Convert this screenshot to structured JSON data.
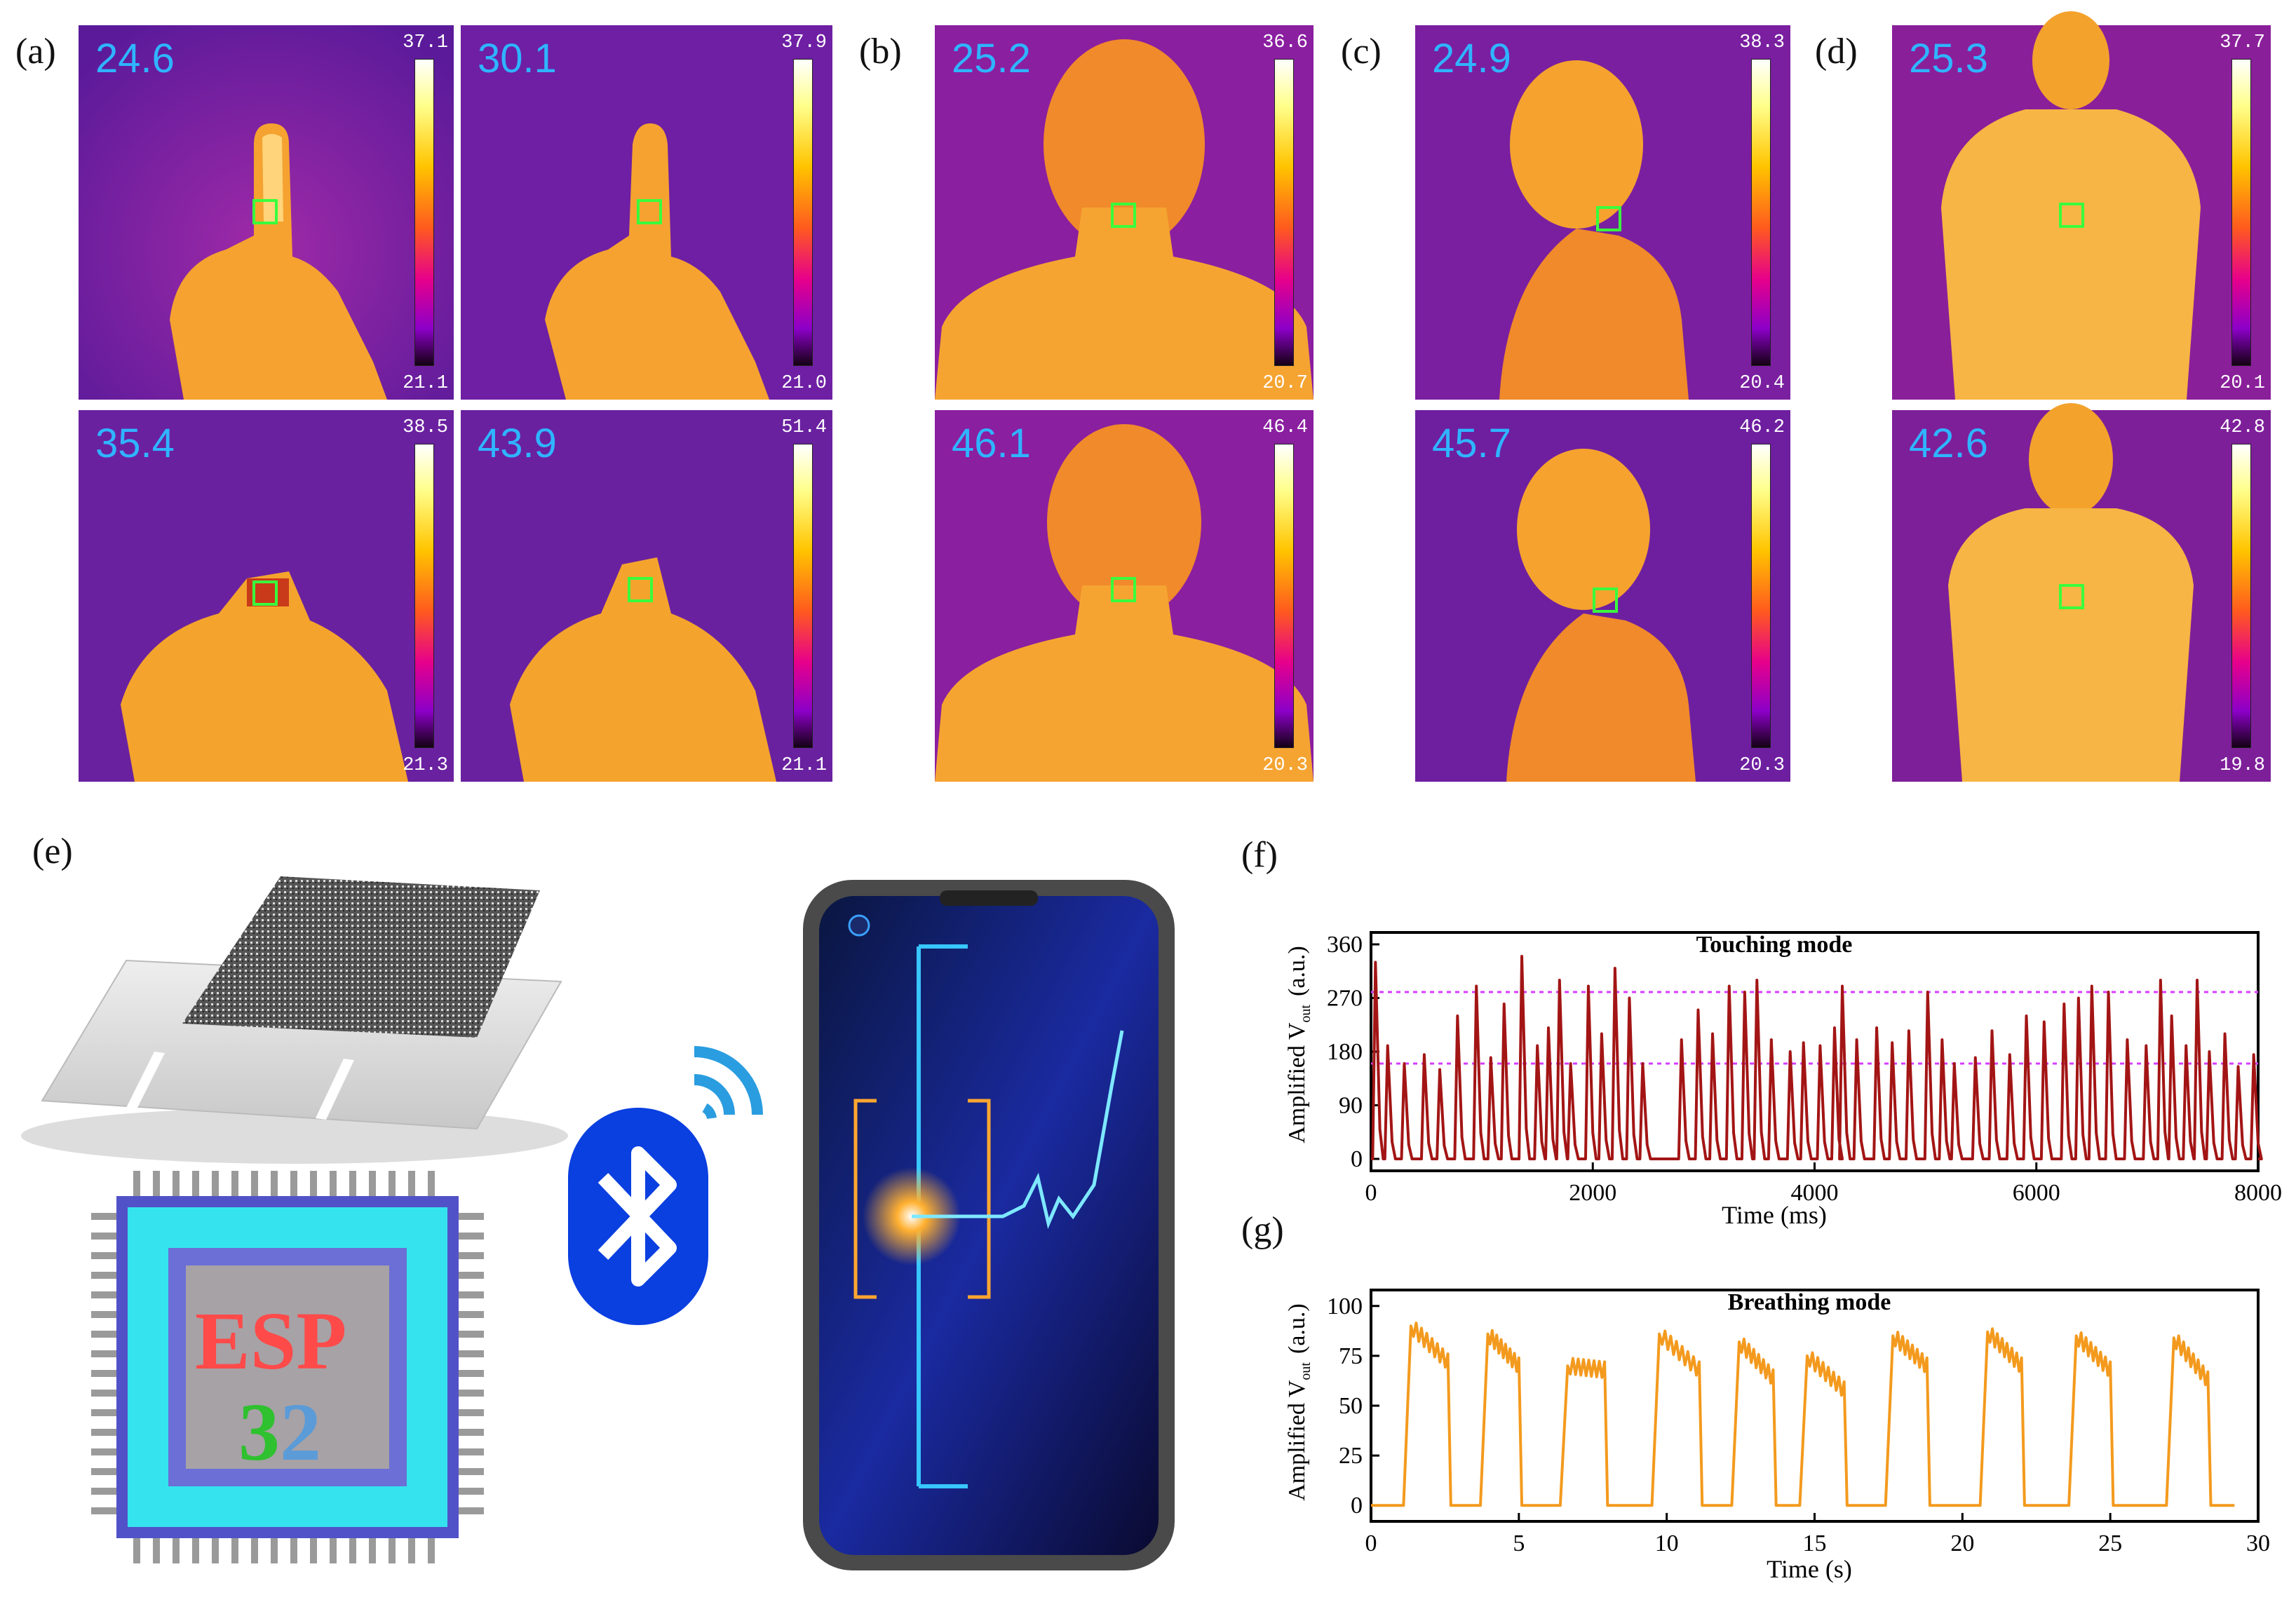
{
  "panel_labels": {
    "a": "(a)",
    "b": "(b)",
    "c": "(c)",
    "d": "(d)",
    "e": "(e)",
    "f": "(f)",
    "g": "(g)"
  },
  "thermal": {
    "a1": {
      "temp": "24.6",
      "max": "37.1",
      "min": "21.1"
    },
    "a2": {
      "temp": "30.1",
      "max": "37.9",
      "min": "21.0"
    },
    "a3": {
      "temp": "35.4",
      "max": "38.5",
      "min": "21.3"
    },
    "a4": {
      "temp": "43.9",
      "max": "51.4",
      "min": "21.1"
    },
    "b1": {
      "temp": "25.2",
      "max": "36.6",
      "min": "20.7"
    },
    "b2": {
      "temp": "46.1",
      "max": "46.4",
      "min": "20.3"
    },
    "c1": {
      "temp": "24.9",
      "max": "38.3",
      "min": "20.4"
    },
    "c2": {
      "temp": "45.7",
      "max": "46.2",
      "min": "20.3"
    },
    "d1": {
      "temp": "25.3",
      "max": "37.7",
      "min": "20.1"
    },
    "d2": {
      "temp": "42.6",
      "max": "42.8",
      "min": "19.8"
    }
  },
  "esp_chip": {
    "line1": "ESP",
    "line2_a": "3",
    "line2_b": "2"
  },
  "colors": {
    "thermal_bg": "#7a1fa2",
    "skin": "#f5a623",
    "chip_outer": "#39e6f0",
    "chip_inner": "#6f6fd9",
    "bluetooth": "#0a3fe0",
    "touch_line": "#a31515",
    "breath_line": "#f39a1e",
    "threshold": "#d63cff"
  },
  "chart_data": [
    {
      "type": "line",
      "title": "Touching mode",
      "xlabel": "Time (ms)",
      "ylabel": "Amplified V",
      "ylabel_sub": "out",
      "ylabel_unit": "(a.u.)",
      "xlim": [
        0,
        8000
      ],
      "ylim": [
        -20,
        380
      ],
      "xticks": [
        0,
        2000,
        4000,
        6000,
        8000
      ],
      "yticks": [
        0,
        90,
        180,
        270,
        360
      ],
      "thresholds": [
        280,
        160
      ],
      "pulses": [
        [
          40,
          330
        ],
        [
          150,
          190
        ],
        [
          300,
          160
        ],
        [
          480,
          175
        ],
        [
          620,
          150
        ],
        [
          780,
          240
        ],
        [
          950,
          290
        ],
        [
          1080,
          170
        ],
        [
          1200,
          260
        ],
        [
          1360,
          340
        ],
        [
          1500,
          190
        ],
        [
          1600,
          220
        ],
        [
          1700,
          300
        ],
        [
          1800,
          160
        ],
        [
          1960,
          290
        ],
        [
          2080,
          210
        ],
        [
          2200,
          320
        ],
        [
          2330,
          270
        ],
        [
          2450,
          160
        ],
        [
          2800,
          200
        ],
        [
          2950,
          250
        ],
        [
          3080,
          210
        ],
        [
          3230,
          290
        ],
        [
          3370,
          280
        ],
        [
          3480,
          300
        ],
        [
          3610,
          200
        ],
        [
          3780,
          180
        ],
        [
          3900,
          195
        ],
        [
          4050,
          190
        ],
        [
          4180,
          220
        ],
        [
          4250,
          290
        ],
        [
          4380,
          200
        ],
        [
          4560,
          220
        ],
        [
          4700,
          195
        ],
        [
          4850,
          215
        ],
        [
          5020,
          280
        ],
        [
          5150,
          200
        ],
        [
          5260,
          160
        ],
        [
          5450,
          170
        ],
        [
          5600,
          215
        ],
        [
          5760,
          175
        ],
        [
          5910,
          240
        ],
        [
          6070,
          230
        ],
        [
          6250,
          260
        ],
        [
          6380,
          270
        ],
        [
          6500,
          290
        ],
        [
          6650,
          280
        ],
        [
          6820,
          200
        ],
        [
          6990,
          190
        ],
        [
          7120,
          300
        ],
        [
          7220,
          240
        ],
        [
          7350,
          190
        ],
        [
          7450,
          300
        ],
        [
          7560,
          180
        ],
        [
          7700,
          210
        ],
        [
          7820,
          155
        ],
        [
          7960,
          175
        ]
      ]
    },
    {
      "type": "line",
      "title": "Breathing mode",
      "xlabel": "Time (s)",
      "ylabel": "Amplified V",
      "ylabel_sub": "out",
      "ylabel_unit": "(a.u.)",
      "xlim": [
        0,
        30
      ],
      "ylim": [
        -8,
        108
      ],
      "xticks": [
        0,
        5,
        10,
        15,
        20,
        25,
        30
      ],
      "yticks": [
        0,
        25,
        50,
        75,
        100
      ],
      "breaths": [
        [
          1.2,
          2.6,
          90,
          72
        ],
        [
          3.8,
          5.0,
          86,
          70
        ],
        [
          6.5,
          7.9,
          70,
          68
        ],
        [
          9.6,
          11.1,
          86,
          68
        ],
        [
          12.3,
          13.6,
          82,
          64
        ],
        [
          14.6,
          16.0,
          75,
          58
        ],
        [
          17.5,
          18.8,
          85,
          70
        ],
        [
          20.7,
          22.0,
          87,
          70
        ],
        [
          23.7,
          25.0,
          85,
          68
        ],
        [
          27.0,
          28.3,
          84,
          63
        ]
      ]
    }
  ]
}
